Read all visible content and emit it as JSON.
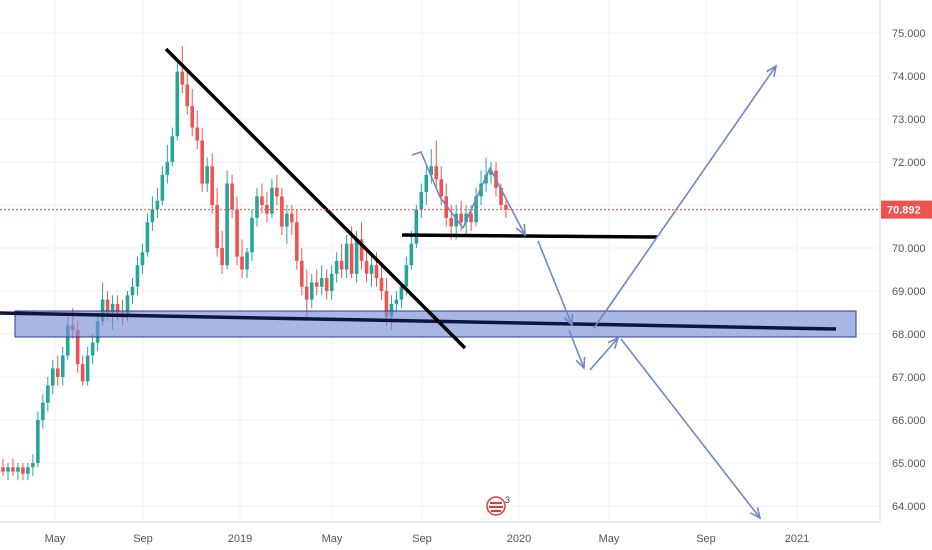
{
  "chart_data": {
    "type": "candlestick",
    "y_axis": {
      "position": "right",
      "ylim": [
        63.6,
        75.4
      ],
      "tick_values": [
        64,
        65,
        66,
        67,
        68,
        69,
        70,
        71,
        72,
        73,
        74,
        75
      ],
      "tick_labels": [
        "64.000",
        "65.000",
        "66.000",
        "67.000",
        "68.000",
        "69.000",
        "70.000",
        "71.000",
        "72.000",
        "73.000",
        "74.000",
        "75.000"
      ]
    },
    "x_axis": {
      "tick_labels": [
        "May",
        "Sep",
        "2019",
        "May",
        "Sep",
        "2020",
        "May",
        "Sep",
        "2021"
      ]
    },
    "last_price": {
      "value": 70.892,
      "label": "70.892",
      "color": "#ef5350"
    },
    "colors": {
      "up": "#26a69a",
      "down": "#ef5350",
      "zone_fill": "#7b8fd6",
      "zone_stroke": "#2a3b8f",
      "arrow": "#6f87c9",
      "trendline": "#000000"
    },
    "grid": true,
    "series": [
      {
        "o": 64.9,
        "h": 65.1,
        "l": 64.7,
        "c": 64.8
      },
      {
        "o": 64.8,
        "h": 65.0,
        "l": 64.6,
        "c": 64.9
      },
      {
        "o": 64.9,
        "h": 65.1,
        "l": 64.7,
        "c": 64.8
      },
      {
        "o": 64.8,
        "h": 65.0,
        "l": 64.6,
        "c": 64.9
      },
      {
        "o": 64.9,
        "h": 65.0,
        "l": 64.6,
        "c": 64.75
      },
      {
        "o": 64.75,
        "h": 65.0,
        "l": 64.6,
        "c": 64.9
      },
      {
        "o": 64.9,
        "h": 65.2,
        "l": 64.7,
        "c": 65.0
      },
      {
        "o": 65.0,
        "h": 66.2,
        "l": 64.9,
        "c": 66.0
      },
      {
        "o": 66.0,
        "h": 66.6,
        "l": 65.8,
        "c": 66.4
      },
      {
        "o": 66.4,
        "h": 67.0,
        "l": 66.2,
        "c": 66.8
      },
      {
        "o": 66.8,
        "h": 67.4,
        "l": 66.6,
        "c": 67.2
      },
      {
        "o": 67.2,
        "h": 67.5,
        "l": 66.8,
        "c": 67.0
      },
      {
        "o": 67.0,
        "h": 67.7,
        "l": 66.8,
        "c": 67.5
      },
      {
        "o": 67.5,
        "h": 68.4,
        "l": 67.4,
        "c": 68.2
      },
      {
        "o": 68.2,
        "h": 68.6,
        "l": 67.9,
        "c": 68.1
      },
      {
        "o": 68.1,
        "h": 68.3,
        "l": 67.1,
        "c": 67.3
      },
      {
        "o": 67.3,
        "h": 67.5,
        "l": 66.8,
        "c": 66.9
      },
      {
        "o": 66.9,
        "h": 67.7,
        "l": 66.8,
        "c": 67.5
      },
      {
        "o": 67.5,
        "h": 68.0,
        "l": 67.3,
        "c": 67.8
      },
      {
        "o": 67.8,
        "h": 68.4,
        "l": 67.6,
        "c": 68.3
      },
      {
        "o": 68.3,
        "h": 69.2,
        "l": 68.2,
        "c": 68.8
      },
      {
        "o": 68.8,
        "h": 69.0,
        "l": 68.3,
        "c": 68.5
      },
      {
        "o": 68.5,
        "h": 68.9,
        "l": 68.1,
        "c": 68.7
      },
      {
        "o": 68.7,
        "h": 68.9,
        "l": 68.3,
        "c": 68.5
      },
      {
        "o": 68.5,
        "h": 68.8,
        "l": 68.2,
        "c": 68.4
      },
      {
        "o": 68.4,
        "h": 69.0,
        "l": 68.3,
        "c": 68.9
      },
      {
        "o": 68.9,
        "h": 69.3,
        "l": 68.7,
        "c": 69.1
      },
      {
        "o": 69.1,
        "h": 69.8,
        "l": 68.9,
        "c": 69.6
      },
      {
        "o": 69.6,
        "h": 70.1,
        "l": 69.4,
        "c": 69.9
      },
      {
        "o": 69.9,
        "h": 70.8,
        "l": 69.8,
        "c": 70.6
      },
      {
        "o": 70.6,
        "h": 71.2,
        "l": 70.4,
        "c": 70.9
      },
      {
        "o": 70.9,
        "h": 71.4,
        "l": 70.7,
        "c": 71.1
      },
      {
        "o": 71.1,
        "h": 71.9,
        "l": 71.0,
        "c": 71.7
      },
      {
        "o": 71.7,
        "h": 72.4,
        "l": 71.5,
        "c": 72.0
      },
      {
        "o": 72.0,
        "h": 72.8,
        "l": 71.9,
        "c": 72.6
      },
      {
        "o": 72.6,
        "h": 74.3,
        "l": 72.5,
        "c": 74.1
      },
      {
        "o": 74.1,
        "h": 74.7,
        "l": 73.6,
        "c": 73.8
      },
      {
        "o": 73.8,
        "h": 74.1,
        "l": 73.1,
        "c": 73.3
      },
      {
        "o": 73.3,
        "h": 73.7,
        "l": 72.6,
        "c": 72.8
      },
      {
        "o": 72.8,
        "h": 73.2,
        "l": 72.3,
        "c": 72.5
      },
      {
        "o": 72.5,
        "h": 72.8,
        "l": 71.3,
        "c": 71.5
      },
      {
        "o": 71.5,
        "h": 72.1,
        "l": 71.3,
        "c": 71.9
      },
      {
        "o": 71.9,
        "h": 72.2,
        "l": 70.8,
        "c": 71.0
      },
      {
        "o": 71.0,
        "h": 71.4,
        "l": 69.8,
        "c": 70.0
      },
      {
        "o": 70.0,
        "h": 70.4,
        "l": 69.4,
        "c": 69.6
      },
      {
        "o": 69.6,
        "h": 71.8,
        "l": 69.5,
        "c": 71.5
      },
      {
        "o": 71.5,
        "h": 71.7,
        "l": 70.7,
        "c": 70.9
      },
      {
        "o": 70.9,
        "h": 71.2,
        "l": 69.6,
        "c": 69.8
      },
      {
        "o": 69.8,
        "h": 70.2,
        "l": 69.3,
        "c": 69.5
      },
      {
        "o": 69.5,
        "h": 70.0,
        "l": 69.3,
        "c": 69.9
      },
      {
        "o": 69.9,
        "h": 70.9,
        "l": 69.7,
        "c": 70.7
      },
      {
        "o": 70.7,
        "h": 71.4,
        "l": 70.5,
        "c": 71.2
      },
      {
        "o": 71.2,
        "h": 71.5,
        "l": 70.8,
        "c": 71.0
      },
      {
        "o": 71.0,
        "h": 71.3,
        "l": 70.6,
        "c": 70.8
      },
      {
        "o": 70.8,
        "h": 71.6,
        "l": 70.7,
        "c": 71.4
      },
      {
        "o": 71.4,
        "h": 71.7,
        "l": 71.0,
        "c": 71.2
      },
      {
        "o": 71.2,
        "h": 71.4,
        "l": 70.3,
        "c": 70.5
      },
      {
        "o": 70.5,
        "h": 71.0,
        "l": 70.1,
        "c": 70.8
      },
      {
        "o": 70.8,
        "h": 71.0,
        "l": 70.3,
        "c": 70.6
      },
      {
        "o": 70.6,
        "h": 70.9,
        "l": 69.5,
        "c": 69.7
      },
      {
        "o": 69.7,
        "h": 70.0,
        "l": 68.9,
        "c": 69.1
      },
      {
        "o": 69.1,
        "h": 69.5,
        "l": 68.3,
        "c": 68.8
      },
      {
        "o": 68.8,
        "h": 69.4,
        "l": 68.6,
        "c": 69.2
      },
      {
        "o": 69.2,
        "h": 69.5,
        "l": 68.9,
        "c": 69.1
      },
      {
        "o": 69.1,
        "h": 69.6,
        "l": 68.9,
        "c": 69.3
      },
      {
        "o": 69.3,
        "h": 69.5,
        "l": 68.8,
        "c": 69.0
      },
      {
        "o": 69.0,
        "h": 69.6,
        "l": 68.8,
        "c": 69.4
      },
      {
        "o": 69.4,
        "h": 69.9,
        "l": 69.2,
        "c": 69.7
      },
      {
        "o": 69.7,
        "h": 70.1,
        "l": 69.3,
        "c": 69.5
      },
      {
        "o": 69.5,
        "h": 70.3,
        "l": 69.3,
        "c": 70.1
      },
      {
        "o": 70.1,
        "h": 70.5,
        "l": 69.3,
        "c": 69.4
      },
      {
        "o": 69.4,
        "h": 70.4,
        "l": 69.2,
        "c": 70.2
      },
      {
        "o": 70.2,
        "h": 70.6,
        "l": 69.5,
        "c": 69.7
      },
      {
        "o": 69.7,
        "h": 69.9,
        "l": 69.2,
        "c": 69.4
      },
      {
        "o": 69.4,
        "h": 69.8,
        "l": 69.1,
        "c": 69.6
      },
      {
        "o": 69.6,
        "h": 69.9,
        "l": 69.1,
        "c": 69.3
      },
      {
        "o": 69.3,
        "h": 69.6,
        "l": 68.8,
        "c": 69.0
      },
      {
        "o": 69.0,
        "h": 69.3,
        "l": 68.2,
        "c": 68.4
      },
      {
        "o": 68.4,
        "h": 68.9,
        "l": 68.1,
        "c": 68.7
      },
      {
        "o": 68.7,
        "h": 69.0,
        "l": 68.5,
        "c": 68.8
      },
      {
        "o": 68.8,
        "h": 69.2,
        "l": 68.6,
        "c": 69.1
      },
      {
        "o": 69.1,
        "h": 69.8,
        "l": 68.9,
        "c": 69.6
      },
      {
        "o": 69.6,
        "h": 70.4,
        "l": 69.5,
        "c": 70.1
      },
      {
        "o": 70.1,
        "h": 71.0,
        "l": 70.0,
        "c": 70.9
      },
      {
        "o": 70.9,
        "h": 71.5,
        "l": 70.7,
        "c": 71.3
      },
      {
        "o": 71.3,
        "h": 71.9,
        "l": 71.0,
        "c": 71.7
      },
      {
        "o": 71.7,
        "h": 72.3,
        "l": 71.5,
        "c": 71.9
      },
      {
        "o": 71.9,
        "h": 72.5,
        "l": 71.4,
        "c": 71.6
      },
      {
        "o": 71.6,
        "h": 71.9,
        "l": 71.0,
        "c": 71.2
      },
      {
        "o": 71.2,
        "h": 71.5,
        "l": 70.5,
        "c": 70.7
      },
      {
        "o": 70.7,
        "h": 71.0,
        "l": 70.2,
        "c": 70.5
      },
      {
        "o": 70.5,
        "h": 71.0,
        "l": 70.2,
        "c": 70.8
      },
      {
        "o": 70.8,
        "h": 71.1,
        "l": 70.4,
        "c": 70.6
      },
      {
        "o": 70.6,
        "h": 71.0,
        "l": 70.3,
        "c": 70.8
      },
      {
        "o": 70.8,
        "h": 71.0,
        "l": 70.4,
        "c": 70.6
      },
      {
        "o": 70.6,
        "h": 71.4,
        "l": 70.5,
        "c": 71.2
      },
      {
        "o": 71.2,
        "h": 71.8,
        "l": 71.0,
        "c": 71.5
      },
      {
        "o": 71.5,
        "h": 72.1,
        "l": 71.3,
        "c": 71.7
      },
      {
        "o": 71.7,
        "h": 72.0,
        "l": 71.5,
        "c": 71.8
      },
      {
        "o": 71.8,
        "h": 72.0,
        "l": 71.2,
        "c": 71.4
      },
      {
        "o": 71.4,
        "h": 71.5,
        "l": 70.9,
        "c": 71.0
      },
      {
        "o": 71.0,
        "h": 71.1,
        "l": 70.7,
        "c": 70.892
      }
    ]
  },
  "event_marker": {
    "count": "3"
  }
}
